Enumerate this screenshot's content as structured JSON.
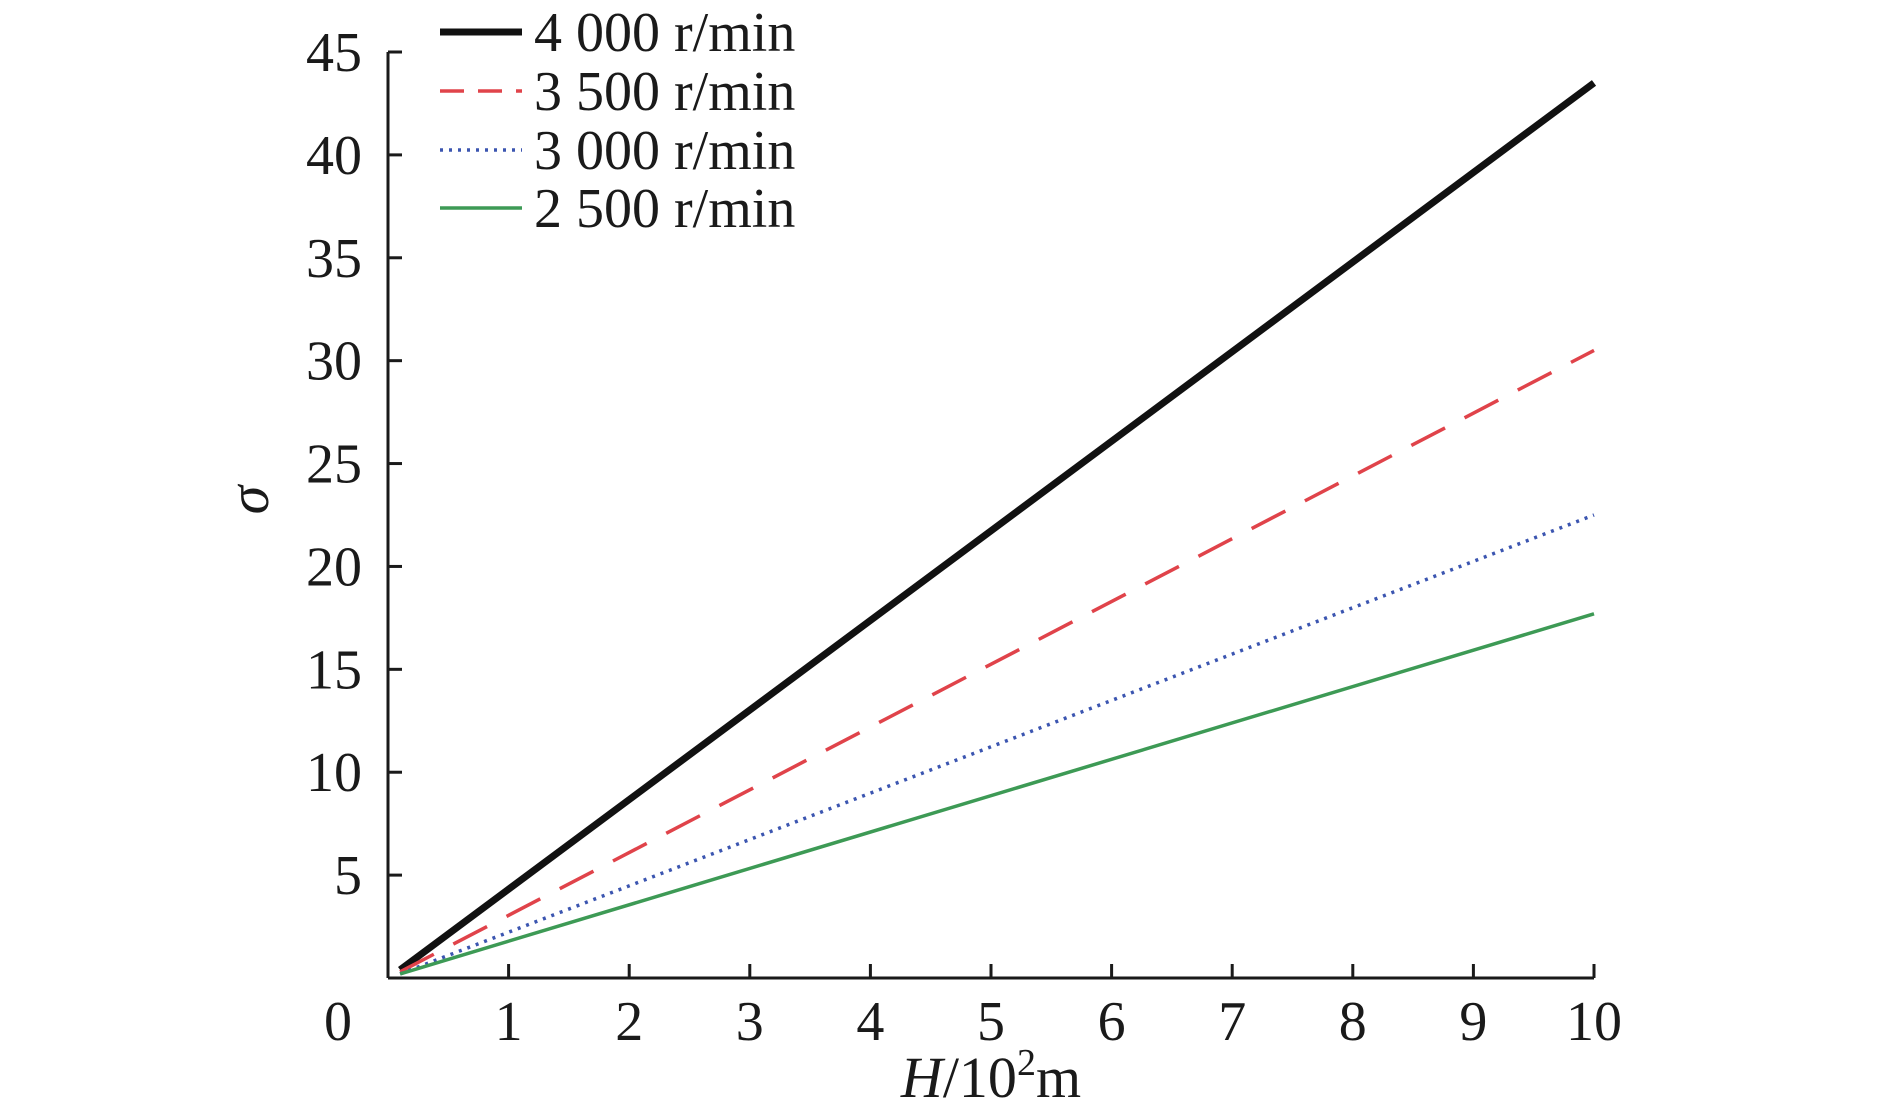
{
  "chart_data": {
    "type": "line",
    "xlabel_italic": "H",
    "xlabel_rest": "/10",
    "xlabel_sup": "2",
    "xlabel_unit": "m",
    "ylabel": "σ",
    "xlim": [
      0,
      10
    ],
    "ylim": [
      0,
      45
    ],
    "x_ticks": [
      0,
      1,
      2,
      3,
      4,
      5,
      6,
      7,
      8,
      9,
      10
    ],
    "y_ticks": [
      5,
      10,
      15,
      20,
      25,
      30,
      35,
      40,
      45
    ],
    "grid": false,
    "legend_position": "top-left",
    "series": [
      {
        "name": "4 000 r/min",
        "color": "#111111",
        "style": "solid",
        "x": [
          0.1,
          10
        ],
        "y": [
          0.4,
          43.5
        ]
      },
      {
        "name": "3 500 r/min",
        "color": "#e0434a",
        "style": "dashed",
        "x": [
          0.1,
          10
        ],
        "y": [
          0.3,
          30.5
        ]
      },
      {
        "name": "3 000 r/min",
        "color": "#3b55b0",
        "style": "dotted",
        "x": [
          0.1,
          10
        ],
        "y": [
          0.2,
          22.5
        ]
      },
      {
        "name": "2 500 r/min",
        "color": "#3d9a55",
        "style": "solid-thin",
        "x": [
          0.1,
          10
        ],
        "y": [
          0.2,
          17.7
        ]
      }
    ]
  }
}
